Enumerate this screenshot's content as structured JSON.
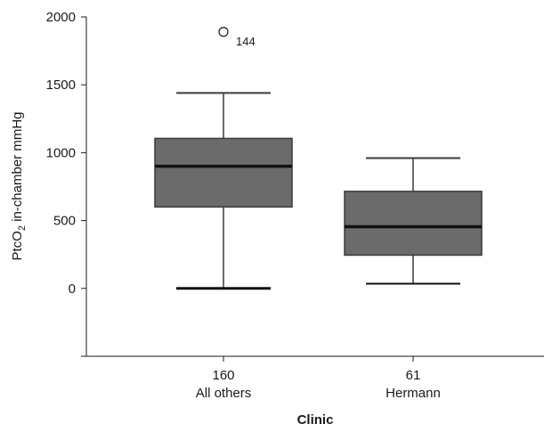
{
  "chart_data": {
    "type": "boxplot",
    "title": "",
    "xlabel": "Clinic",
    "ylabel_main": "PtcO",
    "ylabel_sub": "2",
    "ylabel_rest": " in-chamber mmHg",
    "ylim": [
      -500,
      2000
    ],
    "yticks": [
      0,
      500,
      1000,
      1500,
      2000
    ],
    "ytick_labels": [
      "0",
      "500",
      "1000",
      "1500",
      "2000"
    ],
    "box_color": "#6b6b6b",
    "groups": [
      {
        "count": "160",
        "label": "All others",
        "whisker_low": 0,
        "q1": 600,
        "median": 900,
        "q3": 1105,
        "whisker_high": 1440,
        "outliers": [
          {
            "value": 1890,
            "label": "144"
          }
        ]
      },
      {
        "count": "61",
        "label": "Hermann",
        "whisker_low": 35,
        "q1": 245,
        "median": 455,
        "q3": 715,
        "whisker_high": 960,
        "outliers": []
      }
    ]
  }
}
